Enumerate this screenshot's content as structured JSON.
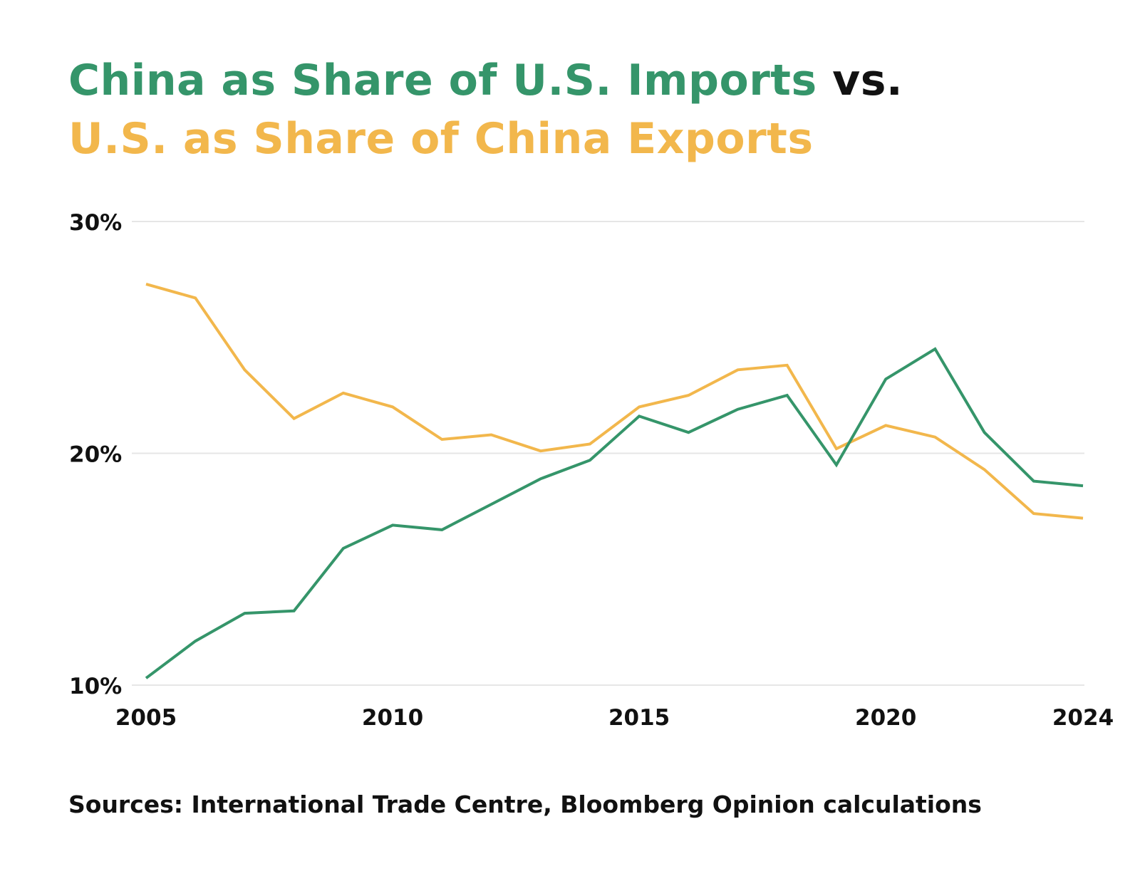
{
  "title": {
    "line1_part1": "China as Share of U.S. Imports",
    "line1_part2": " vs.",
    "line2": "U.S. as Share of China Exports"
  },
  "source": "Sources: International Trade Centre, Bloomberg Opinion calculations",
  "colors": {
    "china_share_us_imports": "#35956a",
    "us_share_china_exports": "#f2b74c",
    "gridline": "#e6e6e6",
    "text": "#111111"
  },
  "chart_data": {
    "type": "line",
    "x": [
      2005,
      2006,
      2007,
      2008,
      2009,
      2010,
      2011,
      2012,
      2013,
      2014,
      2015,
      2016,
      2017,
      2018,
      2019,
      2020,
      2021,
      2022,
      2023,
      2024
    ],
    "series": [
      {
        "name": "China as Share of U.S. Imports",
        "color": "#35956a",
        "values": [
          10.3,
          11.9,
          13.1,
          13.2,
          15.9,
          16.9,
          16.7,
          17.8,
          18.9,
          19.7,
          21.6,
          20.9,
          21.9,
          22.5,
          19.5,
          23.2,
          24.5,
          20.9,
          18.8,
          18.6
        ]
      },
      {
        "name": "U.S. as Share of China Exports",
        "color": "#f2b74c",
        "values": [
          27.3,
          26.7,
          23.6,
          21.5,
          22.6,
          22.0,
          20.6,
          20.8,
          20.1,
          20.4,
          22.0,
          22.5,
          23.6,
          23.8,
          20.2,
          21.2,
          20.7,
          19.3,
          17.4,
          17.2
        ]
      }
    ],
    "x_ticks": [
      "2005",
      "2010",
      "2015",
      "2020",
      "2024"
    ],
    "y_ticks": [
      "10%",
      "20%",
      "30%"
    ],
    "ylim": [
      10,
      30
    ],
    "xlim": [
      2005,
      2024
    ],
    "grid": "horizontal",
    "legend": "none (series named in title colors)"
  }
}
